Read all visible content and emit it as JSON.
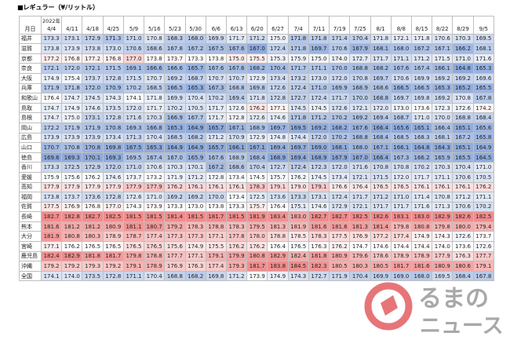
{
  "title": "■レギュラー（¥/リットル）",
  "table": {
    "year_label": "2022年",
    "corner_label": "月日",
    "columns": [
      "4/4",
      "4/11",
      "4/18",
      "4/25",
      "5/9",
      "5/16",
      "5/23",
      "5/30",
      "6/6",
      "6/13",
      "6/20",
      "6/27",
      "7/4",
      "7/11",
      "7/19",
      "7/25",
      "8/1",
      "8/8",
      "8/15",
      "8/22",
      "8/29",
      "9/5"
    ],
    "rows": [
      {
        "name": "福井",
        "values": [
          "173.3",
          "173.1",
          "172.9",
          "171.3",
          "171.0",
          "170.8",
          "168.3",
          "168.0",
          "169.9",
          "171.7",
          "171.2",
          "175.0",
          "171.8",
          "171.8",
          "171.4",
          "170.4",
          "171.8",
          "172.1",
          "171.8",
          "170.6",
          "170.3",
          "169.5"
        ]
      },
      {
        "name": "滋賀",
        "values": [
          "173.8",
          "173.9",
          "173.8",
          "173.0",
          "170.6",
          "168.6",
          "167.8",
          "167.2",
          "167.5",
          "167.6",
          "167.0",
          "172.4",
          "171.8",
          "169.7",
          "170.6",
          "167.9",
          "168.1",
          "168.0",
          "167.2",
          "167.1",
          "166.2",
          "168.1"
        ]
      },
      {
        "name": "京都",
        "values": [
          "177.2",
          "176.8",
          "177.2",
          "176.8",
          "177.0",
          "173.8",
          "173.7",
          "173.3",
          "173.8",
          "175.0",
          "175.5",
          "175.3",
          "175.9",
          "175.0",
          "174.0",
          "172.7",
          "171.7",
          "171.1",
          "171.2",
          "171.5",
          "171.0",
          "171.6"
        ]
      },
      {
        "name": "奈良",
        "values": [
          "172.1",
          "172.0",
          "172.1",
          "171.5",
          "169.1",
          "166.6",
          "166.6",
          "165.7",
          "167.6",
          "167.6",
          "168.2",
          "170.4",
          "171.7",
          "171.1",
          "170.0",
          "168.8",
          "168.2",
          "167.6",
          "167.4",
          "166.1",
          "164.8",
          "165.3"
        ]
      },
      {
        "name": "大阪",
        "values": [
          "174.9",
          "175.4",
          "173.7",
          "172.8",
          "171.5",
          "170.7",
          "169.2",
          "168.7",
          "170.7",
          "170.7",
          "172.9",
          "173.4",
          "173.2",
          "173.0",
          "172.0",
          "170.8",
          "169.7",
          "170.6",
          "169.9",
          "169.2",
          "169.2",
          "169.6"
        ]
      },
      {
        "name": "兵庫",
        "values": [
          "171.9",
          "171.8",
          "172.0",
          "170.9",
          "170.2",
          "168.5",
          "166.5",
          "165.3",
          "167.3",
          "168.8",
          "169.8",
          "172.6",
          "172.4",
          "171.0",
          "169.9",
          "168.9",
          "168.6",
          "166.5",
          "166.5",
          "165.3",
          "165.2",
          "165.5"
        ]
      },
      {
        "name": "和歌山",
        "values": [
          "176.4",
          "174.7",
          "174.5",
          "174.3",
          "174.1",
          "171.8",
          "169.9",
          "170.4",
          "170.2",
          "169.4",
          "171.8",
          "172.8",
          "172.7",
          "172.4",
          "171.7",
          "170.0",
          "168.8",
          "169.7",
          "169.8",
          "169.2",
          "170.8",
          "167.8"
        ]
      },
      {
        "name": "鳥取",
        "values": [
          "174.7",
          "174.9",
          "174.6",
          "173.5",
          "172.0",
          "171.7",
          "170.2",
          "170.5",
          "171.7",
          "172.6",
          "176.2",
          "177.1",
          "174.5",
          "174.5",
          "172.6",
          "172.1",
          "172.0",
          "173.0",
          "173.6",
          "172.3",
          "172.6",
          "174.2"
        ]
      },
      {
        "name": "島根",
        "values": [
          "174.7",
          "175.0",
          "173.1",
          "172.8",
          "171.6",
          "170.3",
          "166.9",
          "167.7",
          "171.7",
          "172.8",
          "172.6",
          "174.6",
          "171.8",
          "171.2",
          "170.2",
          "169.2",
          "169.4",
          "168.7",
          "171.0",
          "170.0",
          "168.8",
          "168.4"
        ]
      },
      {
        "name": "岡山",
        "values": [
          "172.2",
          "171.9",
          "171.9",
          "170.8",
          "169.3",
          "166.8",
          "165.3",
          "164.9",
          "165.7",
          "167.1",
          "168.9",
          "169.7",
          "169.5",
          "169.2",
          "168.2",
          "167.6",
          "166.4",
          "165.6",
          "165.1",
          "166.4",
          "165.1",
          "165.6"
        ]
      },
      {
        "name": "広島",
        "values": [
          "173.9",
          "173.9",
          "173.9",
          "173.4",
          "171.3",
          "170.4",
          "168.5",
          "168.2",
          "171.2",
          "170.9",
          "172.9",
          "174.8",
          "174.4",
          "172.0",
          "170.2",
          "168.8",
          "168.4",
          "168.5",
          "168.3",
          "168.1",
          "167.2",
          "165.8"
        ]
      },
      {
        "name": "山口",
        "values": [
          "170.7",
          "170.8",
          "170.8",
          "169.8",
          "167.5",
          "165.3",
          "164.9",
          "164.9",
          "165.7",
          "166.1",
          "167.1",
          "169.4",
          "169.7",
          "169.0",
          "168.1",
          "168.0",
          "167.1",
          "166.1",
          "164.8",
          "164.3",
          "165.1",
          "164.9"
        ]
      },
      {
        "name": "徳島",
        "values": [
          "169.6",
          "169.3",
          "170.1",
          "169.3",
          "169.5",
          "167.4",
          "167.0",
          "165.9",
          "167.6",
          "168.9",
          "168.4",
          "168.9",
          "169.4",
          "168.9",
          "167.9",
          "167.0",
          "166.4",
          "167.3",
          "166.2",
          "165.9",
          "165.5",
          "164.5"
        ]
      },
      {
        "name": "香川",
        "values": [
          "173.3",
          "172.5",
          "172.9",
          "172.0",
          "171.0",
          "170.6",
          "170.3",
          "170.1",
          "167.2",
          "168.6",
          "170.4",
          "172.7",
          "172.4",
          "172.3",
          "172.0",
          "171.6",
          "170.8",
          "170.8",
          "170.2",
          "170.3",
          "170.4",
          "171.0"
        ]
      },
      {
        "name": "愛媛",
        "values": [
          "175.9",
          "175.6",
          "176.2",
          "174.6",
          "173.7",
          "173.2",
          "171.9",
          "171.2",
          "172.8",
          "173.4",
          "174.5",
          "175.7",
          "176.2",
          "174.5",
          "173.4",
          "172.1",
          "171.5",
          "172.0",
          "171.7",
          "171.1",
          "170.6",
          "170.5"
        ]
      },
      {
        "name": "高知",
        "values": [
          "177.9",
          "177.9",
          "177.9",
          "177.9",
          "177.9",
          "177.9",
          "176.2",
          "176.1",
          "176.1",
          "176.1",
          "178.3",
          "179.1",
          "179.0",
          "179.1",
          "176.6",
          "176.4",
          "176.5",
          "176.5",
          "176.1",
          "176.1",
          "176.1",
          "176.2"
        ]
      },
      {
        "name": "福岡",
        "values": [
          "173.8",
          "173.7",
          "173.6",
          "172.8",
          "172.6",
          "171.0",
          "169.2",
          "169.2",
          "170.0",
          "173.4",
          "172.5",
          "173.6",
          "173.3",
          "173.1",
          "172.4",
          "171.7",
          "171.2",
          "171.0",
          "171.4",
          "170.8",
          "171.2",
          "171.1"
        ]
      },
      {
        "name": "佐賀",
        "values": [
          "177.5",
          "176.9",
          "176.8",
          "177.0",
          "174.3",
          "173.9",
          "173.3",
          "173.0",
          "173.8",
          "173.3",
          "175.7",
          "176.4",
          "175.1",
          "174.6",
          "172.9",
          "172.1",
          "171.7",
          "171.7",
          "171.6",
          "171.3",
          "170.6",
          "170.2"
        ]
      },
      {
        "name": "長崎",
        "values": [
          "182.7",
          "182.8",
          "182.7",
          "182.5",
          "181.5",
          "181.5",
          "181.4",
          "181.5",
          "181.7",
          "181.5",
          "181.9",
          "183.4",
          "183.0",
          "182.7",
          "182.7",
          "182.5",
          "182.6",
          "183.1",
          "183.0",
          "182.9",
          "182.6",
          "182.5"
        ]
      },
      {
        "name": "熊本",
        "values": [
          "181.6",
          "181.2",
          "181.2",
          "180.9",
          "181.1",
          "180.7",
          "179.2",
          "178.3",
          "178.8",
          "178.3",
          "179.5",
          "181.3",
          "181.9",
          "181.6",
          "181.6",
          "181.3",
          "181.4",
          "179.8",
          "180.8",
          "179.8",
          "180.0",
          "179.4"
        ]
      },
      {
        "name": "大分",
        "values": [
          "181.9",
          "180.8",
          "180.3",
          "178.9",
          "178.7",
          "177.4",
          "177.3",
          "177.3",
          "177.1",
          "177.8",
          "178.0",
          "178.8",
          "178.5",
          "178.3",
          "177.5",
          "176.9",
          "177.2",
          "177.4",
          "174.9",
          "174.3",
          "172.6",
          "173.7"
        ]
      },
      {
        "name": "宮崎",
        "values": [
          "177.1",
          "176.2",
          "176.5",
          "176.5",
          "176.5",
          "176.5",
          "175.6",
          "174.9",
          "175.5",
          "176.2",
          "176.2",
          "176.4",
          "176.5",
          "176.3",
          "176.2",
          "174.7",
          "174.6",
          "174.4",
          "174.4",
          "174.0",
          "173.6",
          "172.6"
        ]
      },
      {
        "name": "鹿児島",
        "values": [
          "182.4",
          "182.9",
          "181.8",
          "181.7",
          "179.8",
          "178.8",
          "177.7",
          "177.1",
          "179.1",
          "179.9",
          "180.8",
          "182.9",
          "182.4",
          "181.8",
          "180.9",
          "179.6",
          "178.6",
          "178.9",
          "178.9",
          "177.9",
          "176.3",
          "177.7"
        ]
      },
      {
        "name": "沖縄",
        "values": [
          "179.2",
          "179.2",
          "179.3",
          "179.2",
          "179.1",
          "178.9",
          "176.9",
          "176.3",
          "177.4",
          "179.3",
          "181.7",
          "183.8",
          "184.5",
          "182.3",
          "180.5",
          "180.3",
          "180.5",
          "181.7",
          "181.6",
          "180.9",
          "180.6",
          "179.1"
        ]
      },
      {
        "name": "全国",
        "values": [
          "174.1",
          "174.0",
          "173.5",
          "172.8",
          "171.1",
          "170.4",
          "168.8",
          "168.2",
          "169.8",
          "171.2",
          "173.9",
          "174.9",
          "174.3",
          "172.7",
          "171.9",
          "170.4",
          "169.9",
          "169.0",
          "168.0",
          "169.5",
          "168.4",
          "167.8"
        ]
      }
    ]
  },
  "heatmap_colors": {
    "low": "#8eaadb",
    "mid": "#ffffff",
    "high": "#f08c8c"
  },
  "watermark": {
    "line1": "るまの",
    "line2": "ニュース"
  }
}
